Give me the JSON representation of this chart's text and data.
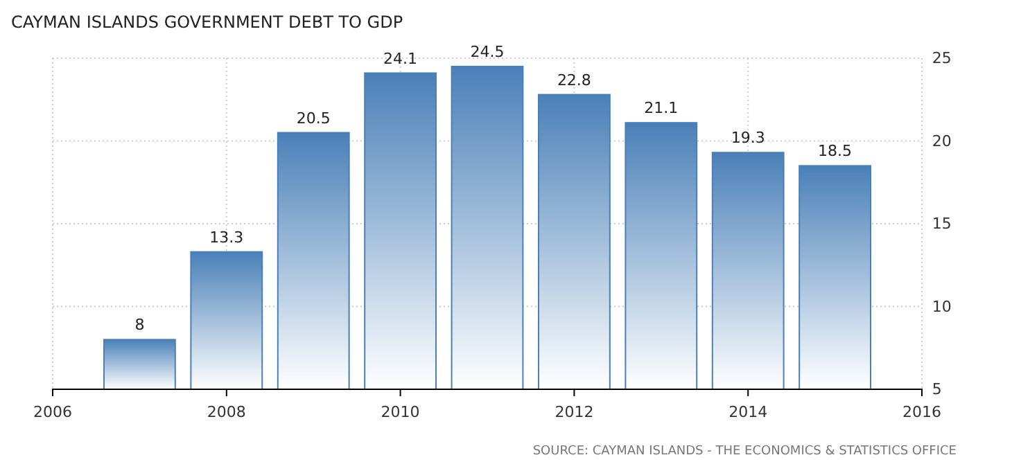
{
  "chart_data": {
    "type": "bar",
    "title": "CAYMAN ISLANDS GOVERNMENT DEBT TO GDP",
    "x": [
      2007,
      2008,
      2009,
      2010,
      2011,
      2012,
      2013,
      2014,
      2015
    ],
    "values": [
      8,
      13.3,
      20.5,
      24.1,
      24.5,
      22.8,
      21.1,
      19.3,
      18.5
    ],
    "color": "#4a80b8",
    "xlim": [
      2006,
      2016
    ],
    "xticks": [
      2006,
      2008,
      2010,
      2012,
      2014,
      2016
    ],
    "ylim": [
      5,
      25
    ],
    "yticks": [
      5,
      10,
      15,
      20,
      25
    ],
    "grid": true,
    "data_labels": true,
    "annotations": [
      "SOURCE: CAYMAN ISLANDS - THE ECONOMICS & STATISTICS OFFICE"
    ]
  }
}
